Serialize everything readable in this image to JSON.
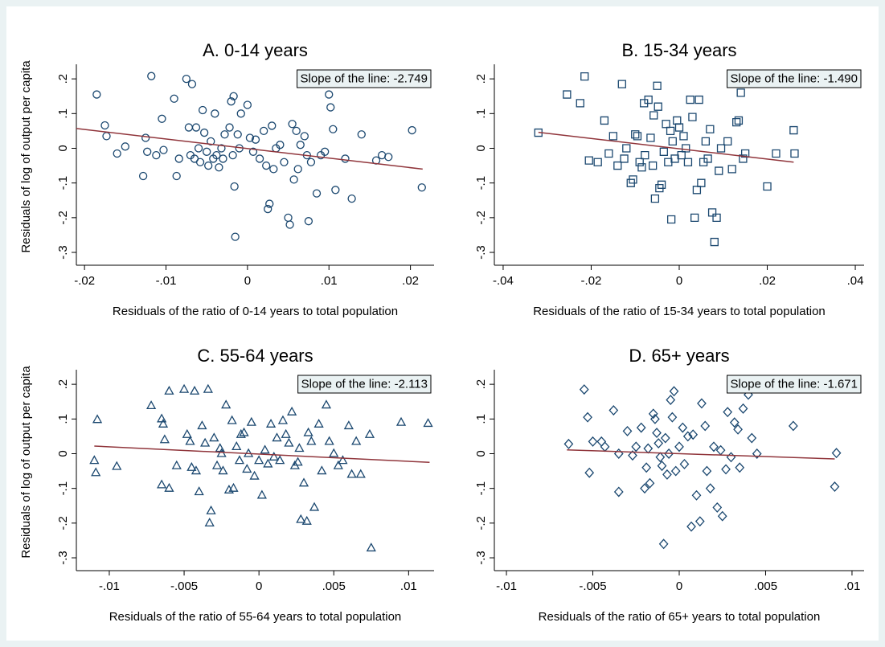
{
  "chart_data": [
    {
      "type": "scatter",
      "title": "A. 0-14 years",
      "x_label": "Residuals of the ratio of 0-14 years to total population",
      "y_label": "Residuals of log of output per capita",
      "annotation": "Slope of the line: -2.749",
      "marker": "circle",
      "color": "#1a476f",
      "x": [
        -0.0185,
        -0.0175,
        -0.0173,
        -0.016,
        -0.015,
        -0.0128,
        -0.0125,
        -0.0123,
        -0.0118,
        -0.0112,
        -0.0105,
        -0.0103,
        -0.009,
        -0.0087,
        -0.0084,
        -0.0075,
        -0.0072,
        -0.007,
        -0.0068,
        -0.0065,
        -0.0063,
        -0.006,
        -0.0058,
        -0.0055,
        -0.0053,
        -0.005,
        -0.0048,
        -0.0045,
        -0.0042,
        -0.004,
        -0.0038,
        -0.0035,
        -0.0032,
        -0.003,
        -0.0028,
        -0.0022,
        -0.002,
        -0.0018,
        -0.0017,
        -0.0016,
        -0.0015,
        -0.0012,
        -0.001,
        -0.0008,
        0.0,
        0.0003,
        0.0007,
        0.001,
        0.0015,
        0.002,
        0.0023,
        0.0025,
        0.0027,
        0.003,
        0.0032,
        0.0035,
        0.004,
        0.0045,
        0.005,
        0.0052,
        0.0055,
        0.0057,
        0.006,
        0.0062,
        0.0065,
        0.007,
        0.0073,
        0.0075,
        0.0078,
        0.0085,
        0.009,
        0.0095,
        0.01,
        0.0102,
        0.0105,
        0.0108,
        0.012,
        0.0128,
        0.014,
        0.0158,
        0.0165,
        0.0173,
        0.0202,
        0.0214
      ],
      "y": [
        0.155,
        0.066,
        0.035,
        -0.015,
        0.005,
        -0.08,
        0.03,
        -0.01,
        0.208,
        -0.02,
        0.085,
        -0.005,
        0.143,
        -0.08,
        -0.03,
        0.2,
        0.06,
        -0.02,
        0.185,
        -0.03,
        0.06,
        0.0,
        -0.04,
        0.11,
        0.045,
        -0.01,
        -0.05,
        0.02,
        -0.03,
        0.1,
        -0.02,
        -0.055,
        0.0,
        -0.03,
        0.04,
        0.06,
        0.135,
        -0.02,
        0.15,
        -0.11,
        -0.255,
        0.04,
        0.0,
        0.1,
        0.125,
        0.03,
        -0.01,
        0.025,
        -0.03,
        0.05,
        -0.05,
        -0.175,
        -0.16,
        0.065,
        -0.06,
        0.0,
        0.01,
        -0.04,
        -0.2,
        -0.22,
        0.07,
        -0.09,
        0.05,
        -0.06,
        0.01,
        0.035,
        -0.02,
        -0.21,
        -0.04,
        -0.13,
        -0.02,
        -0.01,
        0.155,
        0.118,
        0.055,
        -0.12,
        -0.03,
        -0.145,
        0.04,
        -0.035,
        -0.02,
        -0.025,
        0.052,
        -0.113
      ],
      "fit": {
        "color": "#90353b",
        "x": [
          -0.021,
          0.0215
        ],
        "y": [
          0.057,
          -0.06
        ]
      },
      "xlim": [
        -0.021,
        0.0229
      ],
      "ylim": [
        -0.337,
        0.242
      ],
      "xticks": [
        {
          "value": -0.02,
          "label": "-.02"
        },
        {
          "value": -0.01,
          "label": "-.01"
        },
        0,
        {
          "value": 0.01,
          "label": ".01"
        },
        {
          "value": 0.02,
          "label": ".02"
        }
      ],
      "yticks": [
        {
          "value": 0.2,
          "label": ".2"
        },
        {
          "value": 0.1,
          "label": ".1"
        },
        0,
        {
          "value": -0.1,
          "label": "-.1"
        },
        {
          "value": -0.2,
          "label": "-.2"
        },
        {
          "value": -0.3,
          "label": "-.3"
        }
      ]
    },
    {
      "type": "scatter",
      "title": "B. 15-34 years",
      "x_label": "Residuals of the ratio of 15-34 years to total population",
      "annotation": "Slope of the line: -1.490",
      "marker": "square",
      "color": "#1a476f",
      "x": [
        -0.032,
        -0.0255,
        -0.0225,
        -0.0215,
        -0.0205,
        -0.0185,
        -0.017,
        -0.016,
        -0.015,
        -0.014,
        -0.013,
        -0.0125,
        -0.012,
        -0.011,
        -0.0105,
        -0.01,
        -0.0095,
        -0.009,
        -0.0085,
        -0.008,
        -0.0078,
        -0.007,
        -0.0065,
        -0.006,
        -0.0058,
        -0.0055,
        -0.005,
        -0.0048,
        -0.0045,
        -0.004,
        -0.0035,
        -0.003,
        -0.0025,
        -0.002,
        -0.0018,
        -0.0015,
        -0.001,
        -0.0005,
        0.0,
        0.0005,
        0.001,
        0.0015,
        0.002,
        0.0025,
        0.003,
        0.0035,
        0.004,
        0.0045,
        0.005,
        0.0055,
        0.006,
        0.0065,
        0.007,
        0.0075,
        0.008,
        0.0085,
        0.009,
        0.0095,
        0.011,
        0.012,
        0.013,
        0.0135,
        0.014,
        0.0145,
        0.015,
        0.02,
        0.022,
        0.026,
        0.0262
      ],
      "y": [
        0.045,
        0.155,
        0.13,
        0.207,
        -0.035,
        -0.04,
        0.08,
        -0.015,
        0.035,
        -0.05,
        0.185,
        -0.03,
        0.0,
        -0.1,
        -0.09,
        0.04,
        0.035,
        -0.04,
        -0.055,
        0.13,
        -0.02,
        0.14,
        0.03,
        -0.05,
        0.095,
        -0.145,
        0.18,
        0.12,
        -0.115,
        -0.105,
        -0.01,
        0.07,
        -0.04,
        0.05,
        -0.205,
        0.02,
        -0.03,
        0.08,
        0.06,
        -0.02,
        0.035,
        0.0,
        -0.04,
        0.14,
        0.09,
        -0.2,
        -0.12,
        0.14,
        -0.1,
        -0.04,
        0.02,
        -0.03,
        0.055,
        -0.185,
        -0.27,
        -0.2,
        -0.065,
        0.0,
        0.02,
        -0.06,
        0.075,
        0.08,
        0.16,
        -0.03,
        -0.015,
        -0.11,
        -0.015,
        0.052,
        -0.015
      ],
      "fit": {
        "color": "#90353b",
        "x": [
          -0.032,
          0.026
        ],
        "y": [
          0.046,
          -0.04
        ]
      },
      "xlim": [
        -0.042,
        0.042
      ],
      "ylim": [
        -0.337,
        0.242
      ],
      "xticks": [
        {
          "value": -0.04,
          "label": "-.04"
        },
        {
          "value": -0.02,
          "label": "-.02"
        },
        0,
        {
          "value": 0.02,
          "label": ".02"
        },
        {
          "value": 0.04,
          "label": ".04"
        }
      ],
      "yticks": [
        {
          "value": 0.2,
          "label": ".2"
        },
        {
          "value": 0.1,
          "label": ".1"
        },
        0,
        {
          "value": -0.1,
          "label": "-.1"
        },
        {
          "value": -0.2,
          "label": "-.2"
        },
        {
          "value": -0.3,
          "label": "-.3"
        }
      ]
    },
    {
      "type": "scatter",
      "title": "C. 55-64 years",
      "x_label": "Residuals of the ratio of 55-64 years to total population",
      "y_label": "Residuals of log of output per capita",
      "annotation": "Slope of the line: -2.113",
      "marker": "triangle",
      "color": "#1a476f",
      "x": [
        -0.0108,
        -0.011,
        -0.0109,
        -0.0095,
        -0.0072,
        -0.0065,
        -0.0064,
        -0.0063,
        -0.0065,
        -0.006,
        -0.006,
        -0.0055,
        -0.005,
        -0.0048,
        -0.0046,
        -0.0045,
        -0.0043,
        -0.0042,
        -0.004,
        -0.0038,
        -0.0036,
        -0.0034,
        -0.0033,
        -0.0032,
        -0.003,
        -0.0028,
        -0.0026,
        -0.0025,
        -0.0024,
        -0.0022,
        -0.002,
        -0.0018,
        -0.0017,
        -0.0015,
        -0.0013,
        -0.0012,
        -0.001,
        -0.0008,
        -0.0007,
        -0.0005,
        -0.0003,
        0.0,
        0.0002,
        0.0004,
        0.0006,
        0.0008,
        0.001,
        0.0012,
        0.0014,
        0.0016,
        0.0018,
        0.002,
        0.0022,
        0.0024,
        0.0026,
        0.0027,
        0.0028,
        0.003,
        0.0032,
        0.0033,
        0.0035,
        0.0037,
        0.004,
        0.0042,
        0.0045,
        0.0047,
        0.005,
        0.0053,
        0.0056,
        0.006,
        0.0062,
        0.0065,
        0.0068,
        0.0074,
        0.0075,
        0.0095,
        0.0113
      ],
      "y": [
        0.098,
        -0.02,
        -0.055,
        -0.037,
        0.138,
        0.1,
        0.085,
        0.04,
        -0.09,
        0.18,
        -0.1,
        -0.035,
        0.185,
        0.055,
        0.035,
        -0.04,
        0.18,
        -0.05,
        -0.11,
        0.08,
        0.03,
        0.185,
        -0.2,
        -0.165,
        0.045,
        -0.035,
        0.015,
        0.0,
        -0.05,
        0.14,
        -0.105,
        0.095,
        -0.1,
        0.02,
        -0.02,
        0.055,
        0.06,
        -0.045,
        0.0,
        0.09,
        -0.065,
        -0.02,
        -0.12,
        0.01,
        -0.03,
        0.085,
        -0.01,
        0.045,
        -0.02,
        0.095,
        0.055,
        0.03,
        0.12,
        -0.035,
        -0.025,
        0.015,
        -0.19,
        -0.085,
        -0.195,
        0.06,
        0.035,
        -0.155,
        0.085,
        -0.05,
        0.14,
        0.035,
        0.0,
        -0.035,
        -0.02,
        0.08,
        -0.06,
        0.035,
        -0.06,
        0.055,
        -0.272,
        0.09,
        0.087
      ],
      "fit": {
        "color": "#90353b",
        "x": [
          -0.011,
          0.0114
        ],
        "y": [
          0.022,
          -0.025
        ]
      },
      "xlim": [
        -0.0122,
        0.0117
      ],
      "ylim": [
        -0.337,
        0.242
      ],
      "xticks": [
        {
          "value": -0.01,
          "label": "-.01"
        },
        {
          "value": -0.005,
          "label": "-.005"
        },
        0,
        {
          "value": 0.005,
          "label": ".005"
        },
        {
          "value": 0.01,
          "label": ".01"
        }
      ],
      "yticks": [
        {
          "value": 0.2,
          "label": ".2"
        },
        {
          "value": 0.1,
          "label": ".1"
        },
        0,
        {
          "value": -0.1,
          "label": "-.1"
        },
        {
          "value": -0.2,
          "label": "-.2"
        },
        {
          "value": -0.3,
          "label": "-.3"
        }
      ]
    },
    {
      "type": "scatter",
      "title": "D. 65+ years",
      "x_label": "Residuals of the ratio of 65+ years to total population",
      "annotation": "Slope of the line: -1.671",
      "marker": "diamond",
      "color": "#1a476f",
      "x": [
        -0.0064,
        -0.0055,
        -0.0053,
        -0.0052,
        -0.005,
        -0.0045,
        -0.0043,
        -0.0038,
        -0.0035,
        -0.0035,
        -0.003,
        -0.0027,
        -0.0025,
        -0.0022,
        -0.002,
        -0.0019,
        -0.0018,
        -0.0017,
        -0.0015,
        -0.0014,
        -0.0013,
        -0.0012,
        -0.0011,
        -0.001,
        -0.0009,
        -0.0008,
        -0.0007,
        -0.0006,
        -0.0005,
        -0.0004,
        -0.0003,
        -0.0002,
        0.0,
        0.0002,
        0.0003,
        0.0005,
        0.0007,
        0.0008,
        0.001,
        0.0012,
        0.0013,
        0.0015,
        0.0016,
        0.0018,
        0.002,
        0.0022,
        0.0024,
        0.0025,
        0.0027,
        0.0028,
        0.003,
        0.0032,
        0.0034,
        0.0035,
        0.0037,
        0.004,
        0.0042,
        0.0045,
        0.0066,
        0.0091,
        0.009
      ],
      "y": [
        0.028,
        0.185,
        0.105,
        -0.055,
        0.035,
        0.035,
        0.02,
        0.125,
        0.0,
        -0.11,
        0.065,
        -0.005,
        0.02,
        0.075,
        -0.1,
        -0.04,
        0.015,
        -0.085,
        0.115,
        0.1,
        0.06,
        0.03,
        -0.01,
        -0.035,
        -0.26,
        0.045,
        -0.06,
        0.0,
        0.155,
        0.105,
        0.18,
        -0.05,
        0.02,
        0.075,
        -0.03,
        0.05,
        -0.21,
        0.055,
        -0.12,
        -0.195,
        0.145,
        0.08,
        -0.05,
        -0.1,
        0.02,
        -0.155,
        0.01,
        -0.18,
        -0.045,
        0.12,
        -0.01,
        0.09,
        0.07,
        -0.04,
        0.13,
        0.17,
        0.045,
        0.0,
        0.08,
        0.002,
        -0.095
      ],
      "fit": {
        "color": "#90353b",
        "x": [
          -0.0065,
          0.009
        ],
        "y": [
          0.011,
          -0.015
        ]
      },
      "xlim": [
        -0.0107,
        0.0107
      ],
      "ylim": [
        -0.337,
        0.242
      ],
      "xticks": [
        {
          "value": -0.01,
          "label": "-.01"
        },
        {
          "value": -0.005,
          "label": "-.005"
        },
        0,
        {
          "value": 0.005,
          "label": ".005"
        },
        {
          "value": 0.01,
          "label": ".01"
        }
      ],
      "yticks": [
        {
          "value": 0.2,
          "label": ".2"
        },
        {
          "value": 0.1,
          "label": ".1"
        },
        0,
        {
          "value": -0.1,
          "label": "-.1"
        },
        {
          "value": -0.2,
          "label": "-.2"
        },
        {
          "value": -0.3,
          "label": "-.3"
        }
      ]
    }
  ]
}
